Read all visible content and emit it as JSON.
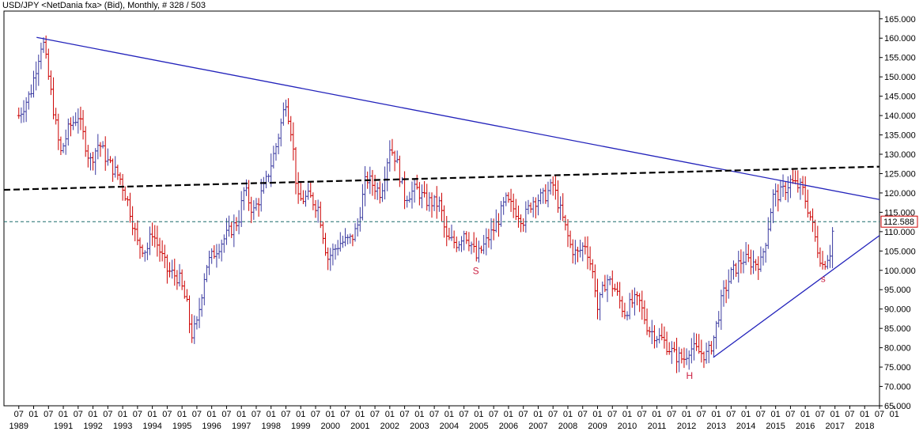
{
  "header": {
    "title": "USD/JPY <NetDania fxa> (Bid), Monthly, # 328 / 503"
  },
  "colors": {
    "bar_up": "#3a3aa0",
    "bar_down": "#cc0000",
    "trendline": "#2222bb",
    "support_line": "#000000",
    "current_line": "#1a6a6a",
    "current_box": "#cc0000",
    "annotation": "#cc2244"
  },
  "chart_data": {
    "type": "ohlc",
    "title": "USD/JPY <NetDania fxa> (Bid), Monthly, # 328 / 503",
    "ylim": [
      65,
      167
    ],
    "y_ticks": [
      "65.000",
      "70.000",
      "75.000",
      "80.000",
      "85.000",
      "90.000",
      "95.000",
      "100.000",
      "105.000",
      "110.000",
      "115.000",
      "120.000",
      "125.000",
      "130.000",
      "135.000",
      "140.000",
      "145.000",
      "150.000",
      "155.000",
      "160.000",
      "165.000"
    ],
    "x_month_labels": [
      "07",
      "01",
      "07",
      "01",
      "07",
      "01",
      "07",
      "01",
      "07",
      "01",
      "07",
      "01",
      "07",
      "01",
      "07",
      "01",
      "07",
      "01",
      "07",
      "01",
      "07",
      "01",
      "07",
      "01",
      "07",
      "01",
      "07",
      "01",
      "07",
      "01",
      "07",
      "01",
      "07",
      "01",
      "07",
      "01",
      "07",
      "01",
      "07",
      "01",
      "07",
      "01",
      "07",
      "01",
      "07",
      "01",
      "07",
      "01",
      "07",
      "01",
      "07",
      "01",
      "07",
      "01",
      "07",
      "01",
      "07",
      "01",
      "07",
      "01"
    ],
    "x_year_labels": [
      "1989",
      "1991",
      "1992",
      "1993",
      "1994",
      "1995",
      "1996",
      "1997",
      "1998",
      "1999",
      "2000",
      "2001",
      "2002",
      "2003",
      "2004",
      "2005",
      "2006",
      "2007",
      "2008",
      "2009",
      "2010",
      "2011",
      "2012",
      "2013",
      "2014",
      "2015",
      "2016",
      "2017",
      "2018"
    ],
    "current_price": "112.588",
    "series": [
      {
        "anchors": [
          [
            1989.5,
            140
          ],
          [
            1989.9,
            146
          ],
          [
            1990.3,
            160
          ],
          [
            1990.6,
            145
          ],
          [
            1990.9,
            130
          ],
          [
            1991.2,
            137
          ],
          [
            1991.5,
            140
          ],
          [
            1991.9,
            128
          ],
          [
            1992.2,
            133
          ],
          [
            1992.5,
            128
          ],
          [
            1992.9,
            124
          ],
          [
            1993.2,
            117
          ],
          [
            1993.5,
            107
          ],
          [
            1993.8,
            105
          ],
          [
            1994.0,
            110
          ],
          [
            1994.5,
            100
          ],
          [
            1994.9,
            98
          ],
          [
            1995.2,
            90
          ],
          [
            1995.3,
            83
          ],
          [
            1995.5,
            86
          ],
          [
            1995.8,
            101
          ],
          [
            1996.2,
            106
          ],
          [
            1996.6,
            110
          ],
          [
            1996.9,
            113
          ],
          [
            1997.1,
            121
          ],
          [
            1997.4,
            115
          ],
          [
            1997.8,
            122
          ],
          [
            1998.2,
            133
          ],
          [
            1998.5,
            144
          ],
          [
            1998.7,
            135
          ],
          [
            1998.9,
            118
          ],
          [
            1999.3,
            119
          ],
          [
            1999.6,
            116
          ],
          [
            1999.9,
            103
          ],
          [
            2000.3,
            107
          ],
          [
            2000.7,
            108
          ],
          [
            2000.9,
            111
          ],
          [
            2001.2,
            124
          ],
          [
            2001.7,
            120
          ],
          [
            2002.0,
            132
          ],
          [
            2002.2,
            129
          ],
          [
            2002.5,
            119
          ],
          [
            2002.9,
            121
          ],
          [
            2003.2,
            118
          ],
          [
            2003.7,
            117
          ],
          [
            2003.9,
            108
          ],
          [
            2004.3,
            107
          ],
          [
            2004.5,
            110
          ],
          [
            2004.8,
            106
          ],
          [
            2004.9,
            103
          ],
          [
            2005.3,
            108
          ],
          [
            2005.6,
            112
          ],
          [
            2005.9,
            118
          ],
          [
            2006.3,
            115
          ],
          [
            2006.5,
            113
          ],
          [
            2006.8,
            118
          ],
          [
            2007.2,
            119
          ],
          [
            2007.5,
            122
          ],
          [
            2007.8,
            114
          ],
          [
            2008.1,
            106
          ],
          [
            2008.3,
            104
          ],
          [
            2008.6,
            107
          ],
          [
            2008.9,
            97
          ],
          [
            2009.0,
            90
          ],
          [
            2009.3,
            98
          ],
          [
            2009.6,
            95
          ],
          [
            2009.9,
            89
          ],
          [
            2010.2,
            92
          ],
          [
            2010.4,
            92
          ],
          [
            2010.7,
            85
          ],
          [
            2011.0,
            83
          ],
          [
            2011.2,
            82
          ],
          [
            2011.6,
            78
          ],
          [
            2011.9,
            77
          ],
          [
            2012.1,
            80
          ],
          [
            2012.4,
            79
          ],
          [
            2012.7,
            78
          ],
          [
            2012.9,
            82
          ],
          [
            2013.2,
            93
          ],
          [
            2013.5,
            99
          ],
          [
            2013.9,
            103
          ],
          [
            2014.2,
            102
          ],
          [
            2014.5,
            102
          ],
          [
            2014.7,
            109
          ],
          [
            2014.9,
            119
          ],
          [
            2015.2,
            120
          ],
          [
            2015.5,
            123
          ],
          [
            2015.9,
            121
          ],
          [
            2016.2,
            113
          ],
          [
            2016.4,
            106
          ],
          [
            2016.6,
            101
          ],
          [
            2016.7,
            103
          ],
          [
            2016.85,
            105
          ],
          [
            2016.95,
            112.6
          ]
        ]
      }
    ],
    "trendlines": [
      {
        "name": "resistance",
        "from": [
          1990.1,
          160.2
        ],
        "to": [
          2018.5,
          118.3
        ]
      },
      {
        "name": "dashed",
        "from": [
          1989.0,
          120.8
        ],
        "to": [
          2018.5,
          126.8
        ]
      },
      {
        "name": "support",
        "from": [
          2012.9,
          77.5
        ],
        "to": [
          2018.5,
          109.0
        ]
      }
    ],
    "annotations": [
      {
        "text": "S",
        "x": 2004.9,
        "y": 99
      },
      {
        "text": "H",
        "x": 2012.1,
        "y": 72
      },
      {
        "text": "s",
        "x": 2016.6,
        "y": 97
      }
    ]
  }
}
